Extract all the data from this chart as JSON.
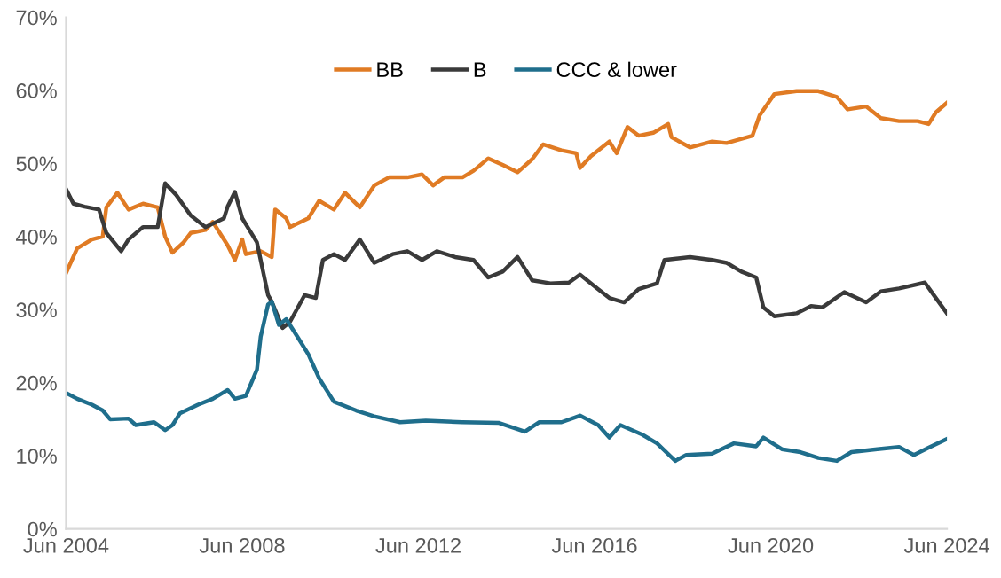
{
  "chart_data": {
    "type": "line",
    "xlim": [
      "2004-06",
      "2024-06"
    ],
    "xticks": [
      {
        "value": "2004-06",
        "label": "Jun 2004"
      },
      {
        "value": "2008-06",
        "label": "Jun 2008"
      },
      {
        "value": "2012-06",
        "label": "Jun 2012"
      },
      {
        "value": "2016-06",
        "label": "Jun 2016"
      },
      {
        "value": "2020-06",
        "label": "Jun 2020"
      },
      {
        "value": "2024-06",
        "label": "Jun 2024"
      }
    ],
    "ylim": [
      0,
      70
    ],
    "yticks": [
      {
        "value": 0,
        "label": "0%"
      },
      {
        "value": 10,
        "label": "10%"
      },
      {
        "value": 20,
        "label": "20%"
      },
      {
        "value": 30,
        "label": "30%"
      },
      {
        "value": 40,
        "label": "40%"
      },
      {
        "value": 50,
        "label": "50%"
      },
      {
        "value": 60,
        "label": "60%"
      },
      {
        "value": 70,
        "label": "70%"
      }
    ],
    "grid": false,
    "legend": "top",
    "marker": "none",
    "line_style": "solid",
    "series": [
      {
        "name": "BB",
        "color": "#e07b24",
        "x": [
          "2004-06",
          "2004-09",
          "2005-01",
          "2005-04",
          "2005-05",
          "2005-08",
          "2005-11",
          "2006-03",
          "2006-07",
          "2006-09",
          "2006-11",
          "2007-02",
          "2007-04",
          "2007-08",
          "2007-10",
          "2008-02",
          "2008-04",
          "2008-06",
          "2008-07",
          "2008-11",
          "2009-02",
          "2009-03",
          "2009-06",
          "2009-07",
          "2009-12",
          "2010-03",
          "2010-07",
          "2010-10",
          "2011-02",
          "2011-06",
          "2011-10",
          "2012-03",
          "2012-07",
          "2012-10",
          "2013-01",
          "2013-06",
          "2013-09",
          "2014-01",
          "2014-05",
          "2014-09",
          "2015-01",
          "2015-04",
          "2015-09",
          "2016-01",
          "2016-02",
          "2016-05",
          "2016-10",
          "2016-12",
          "2017-03",
          "2017-06",
          "2017-10",
          "2018-02",
          "2018-03",
          "2018-08",
          "2019-02",
          "2019-06",
          "2020-01",
          "2020-03",
          "2020-07",
          "2021-01",
          "2021-07",
          "2021-12",
          "2022-03",
          "2022-08",
          "2022-12",
          "2023-05",
          "2023-10",
          "2024-01",
          "2024-03",
          "2024-06"
        ],
        "values": [
          35,
          38.4,
          39.6,
          40,
          44,
          46,
          43.7,
          44.5,
          44,
          40,
          37.8,
          39.2,
          40.5,
          40.9,
          42,
          38.8,
          36.8,
          39.6,
          37.6,
          38,
          37.2,
          43.7,
          42.5,
          41.3,
          42.5,
          44.9,
          43.7,
          46,
          44,
          47,
          48.1,
          48.1,
          48.5,
          47,
          48.1,
          48.1,
          49,
          50.7,
          49.8,
          48.8,
          50.6,
          52.6,
          51.8,
          51.4,
          49.4,
          51,
          53,
          51.4,
          55,
          53.8,
          54.2,
          55.4,
          53.6,
          52.2,
          53,
          52.8,
          53.8,
          56.6,
          59.5,
          59.9,
          59.9,
          59.1,
          57.4,
          57.8,
          56.2,
          55.8,
          55.8,
          55.4,
          57,
          58.3
        ]
      },
      {
        "name": "B",
        "color": "#3a3a3a",
        "x": [
          "2004-06",
          "2004-08",
          "2004-11",
          "2005-03",
          "2005-05",
          "2005-09",
          "2005-11",
          "2006-03",
          "2006-07",
          "2006-09",
          "2006-12",
          "2007-04",
          "2007-08",
          "2008-01",
          "2008-02",
          "2008-04",
          "2008-06",
          "2008-10",
          "2009-01",
          "2009-02",
          "2009-05",
          "2009-07",
          "2009-11",
          "2010-02",
          "2010-04",
          "2010-07",
          "2010-10",
          "2011-02",
          "2011-06",
          "2011-11",
          "2012-03",
          "2012-07",
          "2012-11",
          "2013-04",
          "2013-09",
          "2014-01",
          "2014-05",
          "2014-09",
          "2015-01",
          "2015-06",
          "2015-11",
          "2016-02",
          "2016-07",
          "2016-10",
          "2017-02",
          "2017-06",
          "2017-11",
          "2018-01",
          "2018-08",
          "2019-02",
          "2019-06",
          "2019-10",
          "2020-02",
          "2020-04",
          "2020-07",
          "2021-01",
          "2021-05",
          "2021-08",
          "2022-02",
          "2022-08",
          "2022-12",
          "2023-05",
          "2023-12",
          "2024-03",
          "2024-06"
        ],
        "values": [
          46.5,
          44.5,
          44.1,
          43.7,
          40.5,
          38,
          39.6,
          41.3,
          41.3,
          47.3,
          45.7,
          42.9,
          41.3,
          42.5,
          44.1,
          46.1,
          42.5,
          39.2,
          32,
          31.1,
          27.5,
          28.3,
          32,
          31.6,
          36.8,
          37.6,
          36.8,
          39.6,
          36.4,
          37.6,
          38,
          36.8,
          38,
          37.2,
          36.8,
          34.4,
          35.2,
          37.2,
          34,
          33.6,
          33.7,
          34.8,
          32.8,
          31.6,
          31,
          32.8,
          33.6,
          36.8,
          37.2,
          36.8,
          36.4,
          35.2,
          34.4,
          30.3,
          29.1,
          29.5,
          30.5,
          30.3,
          32.4,
          31,
          32.5,
          32.9,
          33.7,
          31.6,
          29.5
        ]
      },
      {
        "name": "CCC & lower",
        "color": "#1f6e8c",
        "x": [
          "2004-06",
          "2004-09",
          "2005-01",
          "2005-04",
          "2005-06",
          "2005-11",
          "2006-01",
          "2006-06",
          "2006-09",
          "2006-11",
          "2007-01",
          "2007-06",
          "2007-10",
          "2008-02",
          "2008-04",
          "2008-07",
          "2008-10",
          "2008-11",
          "2009-01",
          "2009-02",
          "2009-04",
          "2009-06",
          "2009-09",
          "2009-12",
          "2010-03",
          "2010-07",
          "2011-01",
          "2011-06",
          "2012-01",
          "2012-08",
          "2013-06",
          "2014-04",
          "2014-11",
          "2015-03",
          "2015-09",
          "2016-02",
          "2016-07",
          "2016-10",
          "2017-01",
          "2017-07",
          "2017-11",
          "2018-04",
          "2018-07",
          "2019-02",
          "2019-08",
          "2020-02",
          "2020-04",
          "2020-09",
          "2021-02",
          "2021-07",
          "2021-12",
          "2022-04",
          "2022-11",
          "2023-05",
          "2023-09",
          "2024-01",
          "2024-06"
        ],
        "values": [
          18.6,
          17.8,
          17,
          16.2,
          15,
          15.1,
          14.2,
          14.6,
          13.5,
          14.2,
          15.8,
          17,
          17.8,
          19,
          17.8,
          18.2,
          21.8,
          26.3,
          30.7,
          31.1,
          27.9,
          28.7,
          26.3,
          23.9,
          20.6,
          17.4,
          16.2,
          15.4,
          14.6,
          14.8,
          14.6,
          14.5,
          13.3,
          14.6,
          14.6,
          15.5,
          14.2,
          12.5,
          14.2,
          12.9,
          11.7,
          9.3,
          10.1,
          10.3,
          11.7,
          11.3,
          12.5,
          10.9,
          10.5,
          9.7,
          9.3,
          10.5,
          10.9,
          11.2,
          10.1,
          11.1,
          12.3
        ]
      }
    ]
  }
}
